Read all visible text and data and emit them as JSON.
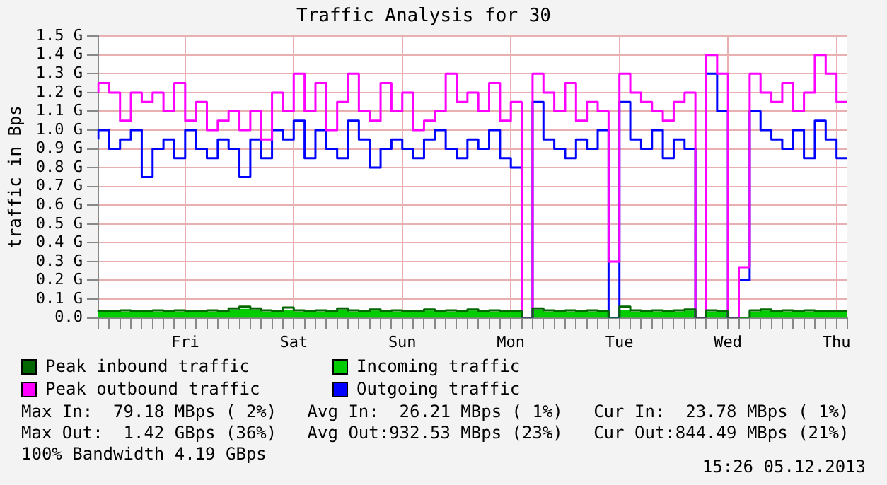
{
  "chart_data": {
    "type": "step",
    "title": "Traffic Analysis for 30",
    "ylabel": "traffic in Bps",
    "categories": [
      null,
      null,
      null,
      null,
      null,
      null,
      null,
      null,
      "Fri",
      null,
      null,
      null,
      null,
      null,
      null,
      null,
      null,
      null,
      "Sat",
      null,
      null,
      null,
      null,
      null,
      null,
      null,
      null,
      null,
      "Sun",
      null,
      null,
      null,
      null,
      null,
      null,
      null,
      null,
      null,
      "Mon",
      null,
      null,
      null,
      null,
      null,
      null,
      null,
      null,
      null,
      "Tue",
      null,
      null,
      null,
      null,
      null,
      null,
      null,
      null,
      null,
      "Wed",
      null,
      null,
      null,
      null,
      null,
      null,
      null,
      null,
      null,
      "Thu",
      null
    ],
    "series": [
      {
        "name": "Peak inbound traffic",
        "color": "#006600",
        "values": [
          0.04,
          0.035,
          0.035,
          0.04,
          0.035,
          0.035,
          0.04,
          0.035,
          0.04,
          0.035,
          0.035,
          0.04,
          0.035,
          0.05,
          0.06,
          0.05,
          0.04,
          0.035,
          0.055,
          0.04,
          0.035,
          0.04,
          0.035,
          0.05,
          0.04,
          0.035,
          0.045,
          0.035,
          0.04,
          0.035,
          0.035,
          0.045,
          0.035,
          0.04,
          0.035,
          0.045,
          0.035,
          0.04,
          0.035,
          0.035,
          0.0,
          0.05,
          0.04,
          0.035,
          0.04,
          0.035,
          0.04,
          0.035,
          0.0,
          0.06,
          0.04,
          0.035,
          0.04,
          0.035,
          0.04,
          0.045,
          0.0,
          0.04,
          0.035,
          0.0,
          0.0,
          0.04,
          0.045,
          0.035,
          0.04,
          0.035,
          0.04,
          0.035,
          0.035,
          0.035
        ]
      },
      {
        "name": "Incoming traffic",
        "type": "area",
        "color": "#00cc00",
        "values": [
          0.03,
          0.025,
          0.025,
          0.03,
          0.025,
          0.025,
          0.03,
          0.025,
          0.03,
          0.025,
          0.025,
          0.03,
          0.025,
          0.04,
          0.045,
          0.04,
          0.03,
          0.025,
          0.04,
          0.03,
          0.025,
          0.03,
          0.025,
          0.04,
          0.03,
          0.025,
          0.035,
          0.025,
          0.03,
          0.025,
          0.025,
          0.035,
          0.025,
          0.03,
          0.025,
          0.035,
          0.025,
          0.03,
          0.025,
          0.025,
          0.0,
          0.04,
          0.03,
          0.025,
          0.03,
          0.025,
          0.03,
          0.025,
          0.0,
          0.04,
          0.03,
          0.025,
          0.03,
          0.025,
          0.03,
          0.035,
          0.0,
          0.03,
          0.025,
          0.0,
          0.0,
          0.03,
          0.035,
          0.025,
          0.03,
          0.025,
          0.03,
          0.025,
          0.025,
          0.025
        ]
      },
      {
        "name": "Peak outbound traffic",
        "color": "#ff00ff",
        "values": [
          1.2,
          1.25,
          1.2,
          1.05,
          1.2,
          1.15,
          1.2,
          1.1,
          1.25,
          1.05,
          1.15,
          1.0,
          1.05,
          1.1,
          1.0,
          1.1,
          0.95,
          1.2,
          1.1,
          1.3,
          1.1,
          1.25,
          1.0,
          1.15,
          1.3,
          1.1,
          1.05,
          1.25,
          1.1,
          1.2,
          1.0,
          1.05,
          1.1,
          1.3,
          1.15,
          1.2,
          1.1,
          1.25,
          1.05,
          1.15,
          0.0,
          1.3,
          1.2,
          1.1,
          1.25,
          1.05,
          1.15,
          1.1,
          0.3,
          1.3,
          1.2,
          1.15,
          1.1,
          1.05,
          1.15,
          1.2,
          0.0,
          1.4,
          1.3,
          0.0,
          0.27,
          1.3,
          1.2,
          1.15,
          1.25,
          1.1,
          1.2,
          1.4,
          1.3,
          1.15
        ]
      },
      {
        "name": "Outgoing traffic",
        "color": "#0000ff",
        "values": [
          0.95,
          1.0,
          0.9,
          0.95,
          1.0,
          0.75,
          0.9,
          0.95,
          0.85,
          1.0,
          0.9,
          0.85,
          0.95,
          0.9,
          0.75,
          0.95,
          0.85,
          1.0,
          0.95,
          1.05,
          0.85,
          1.0,
          0.9,
          0.85,
          1.05,
          0.95,
          0.8,
          0.9,
          0.95,
          0.9,
          0.85,
          0.95,
          1.0,
          0.9,
          0.85,
          0.95,
          0.9,
          1.0,
          0.85,
          0.8,
          0.0,
          1.15,
          0.95,
          0.9,
          0.85,
          0.95,
          0.9,
          1.0,
          0.0,
          1.15,
          0.95,
          0.9,
          1.0,
          0.85,
          0.95,
          0.9,
          0.0,
          1.3,
          1.1,
          0.0,
          0.2,
          1.1,
          1.0,
          0.95,
          0.9,
          1.0,
          0.85,
          1.05,
          0.95,
          0.85
        ]
      }
    ],
    "ylim": [
      0,
      1.5
    ],
    "yticks": [
      {
        "value": 0,
        "label": "0.0"
      },
      {
        "value": 0.1,
        "label": "0.1 G"
      },
      {
        "value": 0.2,
        "label": "0.2 G"
      },
      {
        "value": 0.3,
        "label": "0.3 G"
      },
      {
        "value": 0.4,
        "label": "0.4 G"
      },
      {
        "value": 0.5,
        "label": "0.5 G"
      },
      {
        "value": 0.6,
        "label": "0.6 G"
      },
      {
        "value": 0.7,
        "label": "0.7 G"
      },
      {
        "value": 0.8,
        "label": "0.8 G"
      },
      {
        "value": 0.9,
        "label": "0.9 G"
      },
      {
        "value": 1.0,
        "label": "1.0 G"
      },
      {
        "value": 1.1,
        "label": "1.1 G"
      },
      {
        "value": 1.2,
        "label": "1.2 G"
      },
      {
        "value": 1.3,
        "label": "1.3 G"
      },
      {
        "value": 1.4,
        "label": "1.4 G"
      },
      {
        "value": 1.5,
        "label": "1.5 G"
      }
    ],
    "grid": true,
    "legend": "bottom",
    "annotations": [
      "Max In:  79.18 MBps ( 2%)   Avg In:  26.21 MBps ( 1%)   Cur In:  23.78 MBps ( 1%)",
      "Max Out:  1.42 GBps (36%)   Avg Out:932.53 MBps (23%)   Cur Out:844.49 MBps (21%)",
      "100% Bandwidth 4.19 GBps",
      "15:26 05.12.2013"
    ]
  }
}
